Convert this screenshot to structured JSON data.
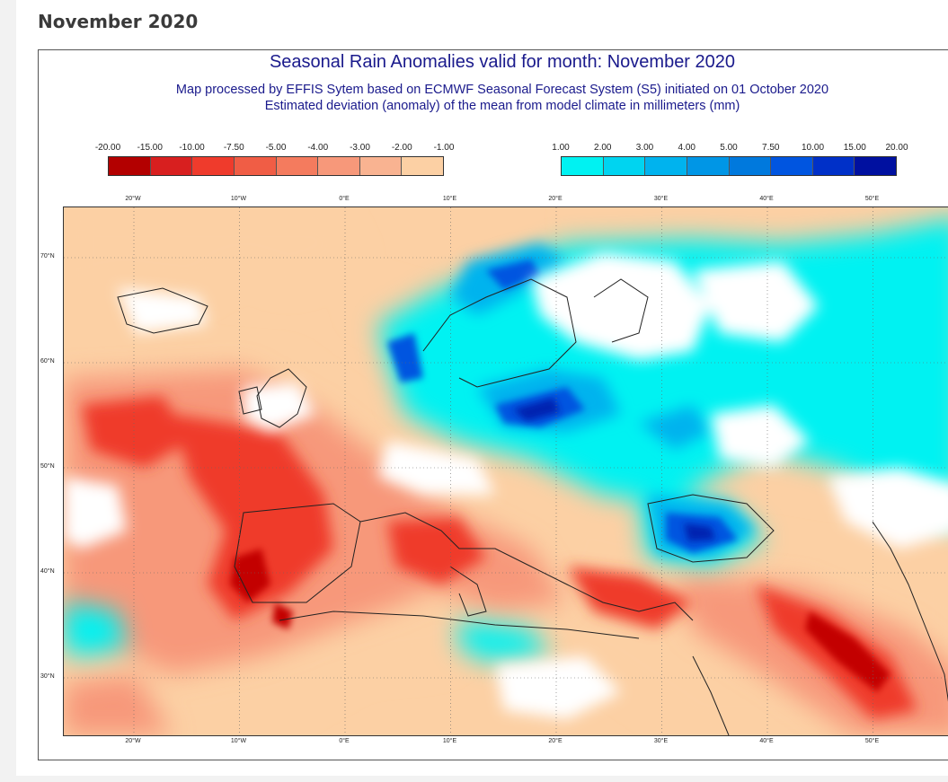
{
  "page": {
    "heading": "November 2020"
  },
  "figure": {
    "title": "Seasonal Rain Anomalies valid for month: November 2020",
    "subtitle1": "Map processed by EFFIS Sytem based on ECMWF Seasonal Forecast System (S5) initiated on 01 October 2020",
    "subtitle2": "Estimated deviation (anomaly) of the mean from model climate in millimeters (mm)"
  },
  "legend": {
    "negative": {
      "labels": [
        "-20.00",
        "-15.00",
        "-10.00",
        "-7.50",
        "-5.00",
        "-4.00",
        "-3.00",
        "-2.00",
        "-1.00"
      ],
      "colors": [
        "#b30000",
        "#d81f1f",
        "#ef3b2c",
        "#f05d45",
        "#f47b5e",
        "#f7987a",
        "#f9b391",
        "#fcd0a4"
      ]
    },
    "positive": {
      "labels": [
        "1.00",
        "2.00",
        "3.00",
        "4.00",
        "5.00",
        "7.50",
        "10.00",
        "15.00",
        "20.00"
      ],
      "colors": [
        "#00f2f2",
        "#00d4f0",
        "#00b3ee",
        "#0096e6",
        "#0079dd",
        "#0055e0",
        "#0030c8",
        "#0010a0"
      ]
    }
  },
  "map": {
    "lon_labels": [
      "20°W",
      "10°W",
      "0°E",
      "10°E",
      "20°E",
      "30°E",
      "40°E",
      "50°E"
    ],
    "lat_labels": [
      "70°N",
      "60°N",
      "50°N",
      "40°N",
      "30°N"
    ],
    "colors": {
      "dry_light": "#fcd0a4",
      "dry_mid": "#f7987a",
      "dry_strong": "#ef3b2c",
      "dry_extreme": "#c30000",
      "wet_light": "#00f2f2",
      "wet_mid": "#00b3ee",
      "wet_strong": "#0055e0",
      "wet_extreme": "#0020b0",
      "neutral": "#ffffff",
      "transition": "#b8b8b8"
    }
  }
}
